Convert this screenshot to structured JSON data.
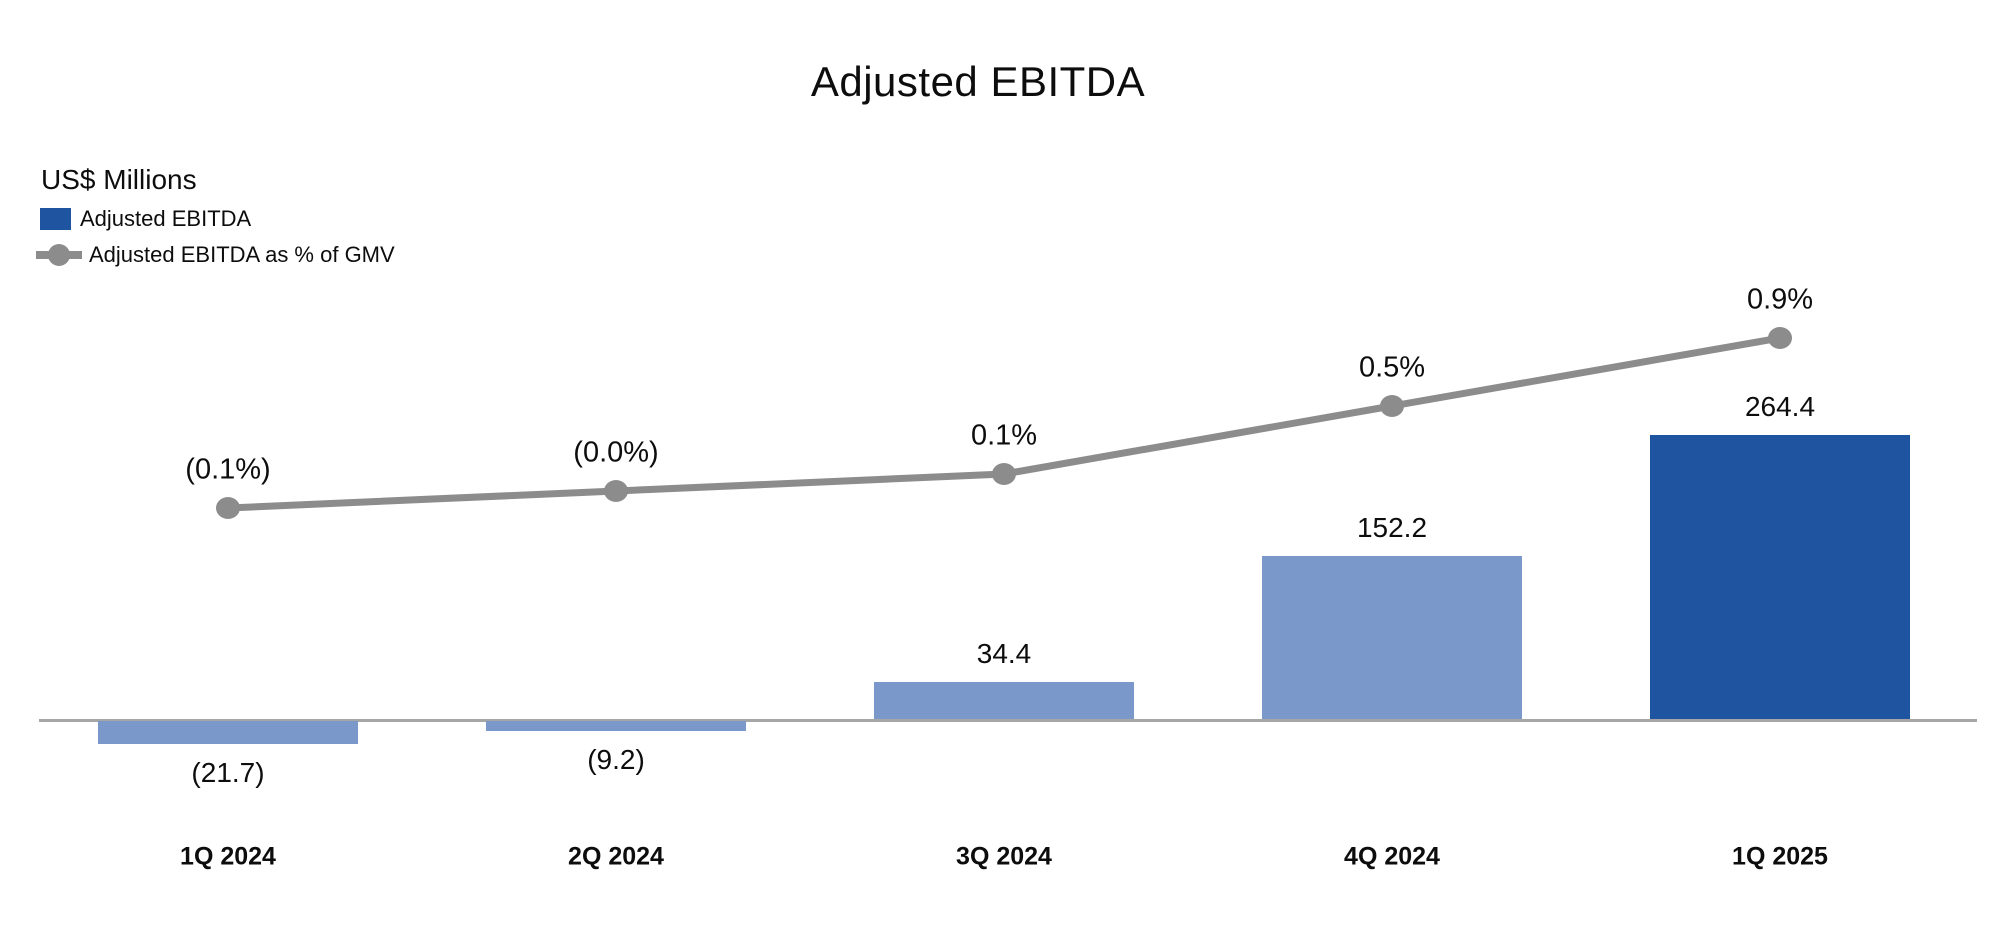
{
  "header": {
    "title": "Adjusted EBITDA"
  },
  "legend": {
    "units_label": "US$ Millions",
    "items": [
      {
        "label": "Adjusted EBITDA",
        "marker": "bar-swatch",
        "color": "#1F55A0"
      },
      {
        "label": "Adjusted EBITDA as % of GMV",
        "marker": "line-marker-swatch",
        "color": "#8C8C8C"
      }
    ]
  },
  "colors": {
    "bar_default": "#7B98CB",
    "bar_highlight": "#1F55A0",
    "line": "#8C8C8C",
    "axis": "#A6A6A6",
    "text": "#0D0D0D",
    "background": "#FFFFFF"
  },
  "chart_data": {
    "type": "bar",
    "subtype": "bar-line-combo",
    "title": "Adjusted EBITDA",
    "units": "US$ Millions",
    "categories": [
      "1Q 2024",
      "2Q 2024",
      "3Q 2024",
      "4Q 2024",
      "1Q 2025"
    ],
    "series": [
      {
        "name": "Adjusted EBITDA",
        "type": "bar",
        "axis": "primary (US$ Millions)",
        "values": [
          -21.7,
          -9.2,
          34.4,
          152.2,
          264.4
        ],
        "labels": [
          "(21.7)",
          "(9.2)",
          "34.4",
          "152.2",
          "264.4"
        ],
        "bar_colors": [
          "#7B98CB",
          "#7B98CB",
          "#7B98CB",
          "#7B98CB",
          "#1F55A0"
        ]
      },
      {
        "name": "Adjusted EBITDA as % of GMV",
        "type": "line",
        "axis": "secondary (% of GMV)",
        "values": [
          -0.1,
          0.0,
          0.1,
          0.5,
          0.9
        ],
        "labels": [
          "(0.1%)",
          "(0.0%)",
          "0.1%",
          "0.5%",
          "0.9%"
        ]
      }
    ],
    "legend_position": "top-left",
    "grid": false,
    "value_axis_hidden": true,
    "data_labels_shown": true
  }
}
